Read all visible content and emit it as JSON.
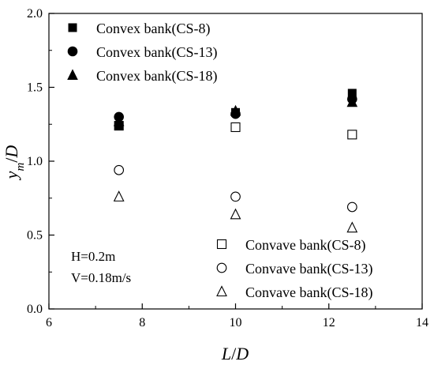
{
  "chart_data": {
    "type": "scatter",
    "xlabel": "L/D",
    "ylabel": "ym/D",
    "xlim": [
      6,
      14
    ],
    "ylim": [
      0.0,
      2.0
    ],
    "xticks": [
      "6",
      "8",
      "10",
      "12",
      "14"
    ],
    "yticks": [
      "0.0",
      "0.5",
      "1.0",
      "1.5",
      "2.0"
    ],
    "grid": false,
    "legend_placement": "top-left and bottom-right",
    "annotations": [
      "H=0.2m",
      "V=0.18m/s"
    ],
    "series": [
      {
        "name": "Convex bank(CS-8)",
        "marker": "filled-square",
        "points": [
          [
            7.5,
            1.24
          ],
          [
            10.0,
            1.33
          ],
          [
            12.5,
            1.46
          ]
        ]
      },
      {
        "name": "Convex bank(CS-13)",
        "marker": "filled-circle",
        "points": [
          [
            7.5,
            1.3
          ],
          [
            10.0,
            1.32
          ],
          [
            12.5,
            1.42
          ]
        ]
      },
      {
        "name": "Convex bank(CS-18)",
        "marker": "filled-triangle",
        "points": [
          [
            7.5,
            1.27
          ],
          [
            10.0,
            1.34
          ],
          [
            12.5,
            1.4
          ]
        ]
      },
      {
        "name": "Convave bank(CS-8)",
        "marker": "open-square",
        "points": [
          [
            7.5,
            1.24
          ],
          [
            10.0,
            1.23
          ],
          [
            12.5,
            1.18
          ]
        ]
      },
      {
        "name": "Convave bank(CS-13)",
        "marker": "open-circle",
        "points": [
          [
            7.5,
            0.94
          ],
          [
            10.0,
            0.76
          ],
          [
            12.5,
            0.69
          ]
        ]
      },
      {
        "name": "Convave bank(CS-18)",
        "marker": "open-triangle",
        "points": [
          [
            7.5,
            0.76
          ],
          [
            10.0,
            0.64
          ],
          [
            12.5,
            0.55
          ]
        ]
      }
    ]
  }
}
